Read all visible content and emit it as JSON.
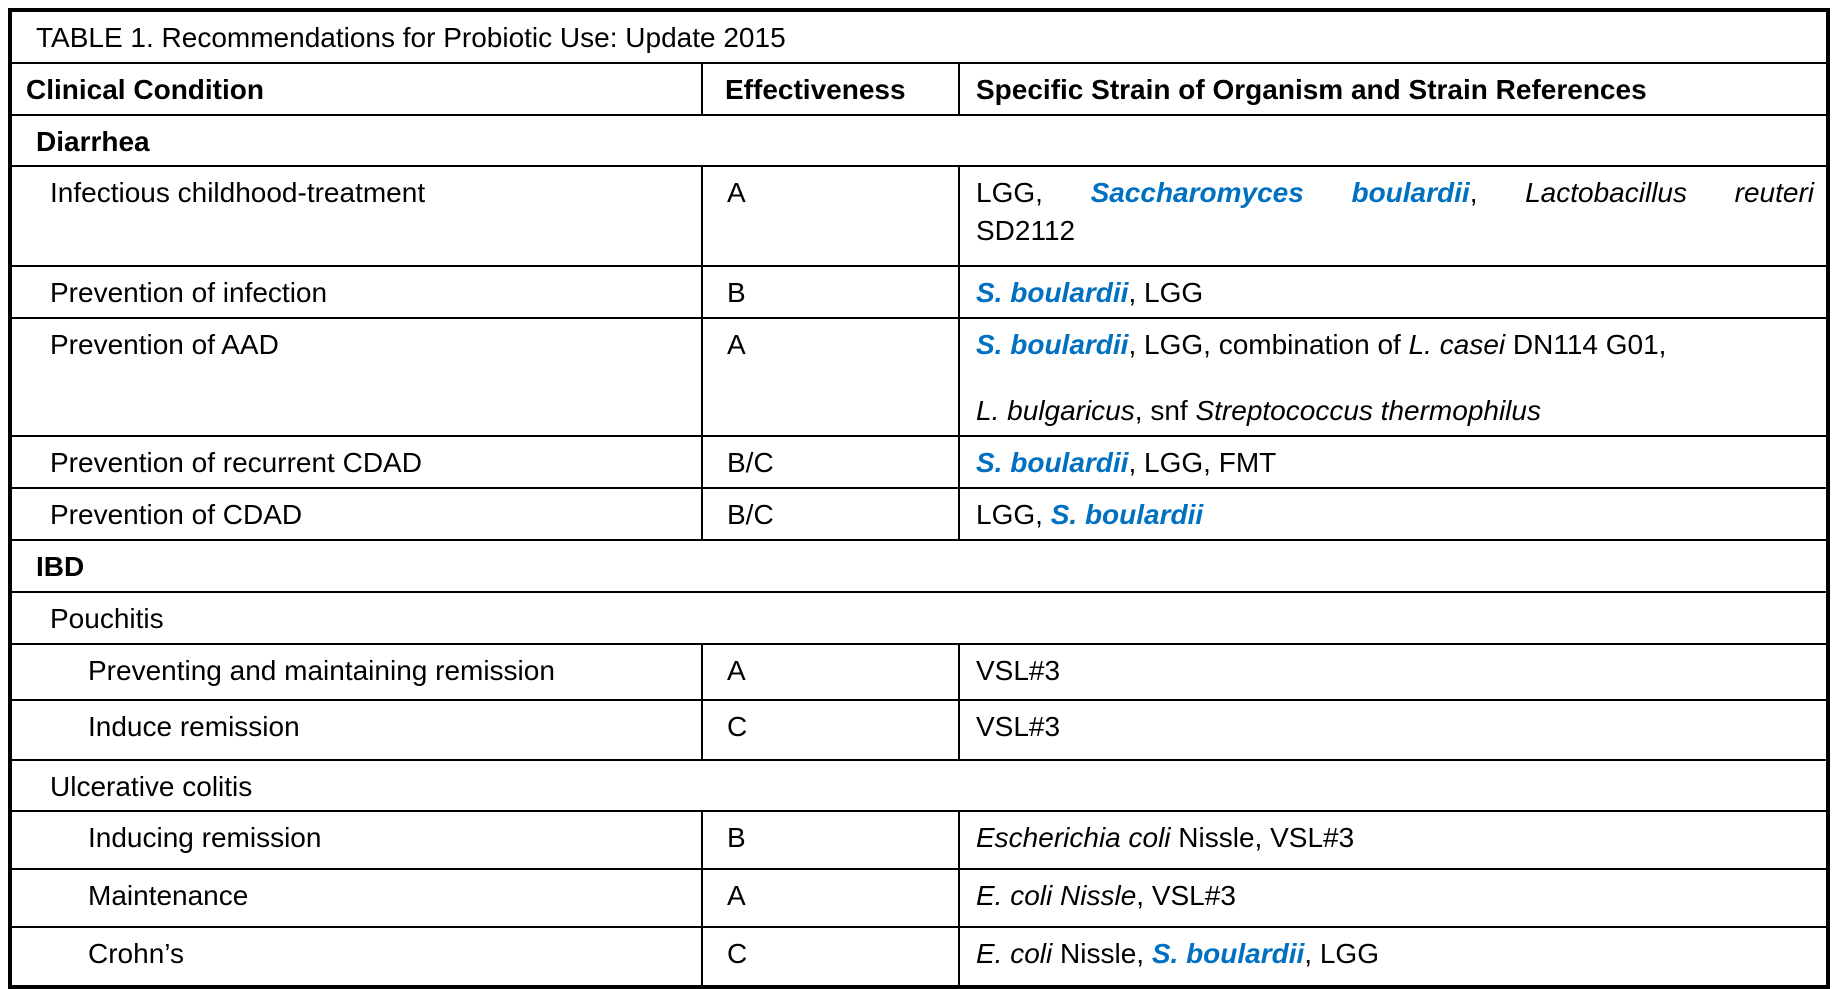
{
  "table": {
    "title": "TABLE 1. Recommendations for Probiotic Use: Update 2015",
    "columns": [
      "Clinical Condition",
      "Effectiveness",
      "Specific Strain of Organism and Strain References"
    ]
  },
  "colors": {
    "strain_blue": "#0070C0",
    "border": "#000000",
    "text": "#000000",
    "background": "#FFFFFF"
  },
  "rows": [
    {
      "type": "section",
      "label": "Diarrhea"
    },
    {
      "type": "data",
      "indent": 1,
      "condition": "Infectious childhood-treatment",
      "effectiveness": "A",
      "strain_lines": [
        {
          "justify": true,
          "segments": [
            {
              "text": "LGG, ",
              "style": "regular"
            },
            {
              "text": "Saccharomyces boulardii",
              "style": "blue-bold-italic"
            },
            {
              "text": ", ",
              "style": "regular"
            },
            {
              "text": "Lactobacillus reuteri",
              "style": "italic"
            }
          ]
        },
        {
          "justify": false,
          "segments": [
            {
              "text": "SD2112",
              "style": "regular"
            }
          ]
        }
      ]
    },
    {
      "type": "data",
      "indent": 1,
      "condition": "Prevention of infection",
      "effectiveness": "B",
      "strain_lines": [
        {
          "justify": false,
          "segments": [
            {
              "text": "S. boulardii",
              "style": "blue-bold-italic"
            },
            {
              "text": ", LGG",
              "style": "regular"
            }
          ]
        }
      ]
    },
    {
      "type": "data",
      "indent": 1,
      "condition": "Prevention of AAD",
      "effectiveness": "A",
      "strain_lines": [
        {
          "justify": false,
          "segments": [
            {
              "text": "S. boulardii",
              "style": "blue-bold-italic"
            },
            {
              "text": ", LGG, combination of ",
              "style": "regular"
            },
            {
              "text": "L. casei",
              "style": "italic"
            },
            {
              "text": " DN114 G01,",
              "style": "regular"
            }
          ]
        },
        {
          "justify": false,
          "segments": [
            {
              "text": "L. bulgaricus",
              "style": "italic"
            },
            {
              "text": ", snf ",
              "style": "regular"
            },
            {
              "text": "Streptococcus thermophilus",
              "style": "italic"
            }
          ]
        }
      ]
    },
    {
      "type": "data",
      "indent": 1,
      "condition": "Prevention of recurrent CDAD",
      "effectiveness": "B/C",
      "strain_lines": [
        {
          "justify": false,
          "segments": [
            {
              "text": "S. boulardii",
              "style": "blue-bold-italic"
            },
            {
              "text": ", LGG, FMT",
              "style": "regular"
            }
          ]
        }
      ]
    },
    {
      "type": "data",
      "indent": 1,
      "condition": "Prevention of CDAD",
      "effectiveness": "B/C",
      "strain_lines": [
        {
          "justify": false,
          "segments": [
            {
              "text": "LGG, ",
              "style": "regular"
            },
            {
              "text": "S. boulardii",
              "style": "blue-bold-italic"
            }
          ]
        }
      ]
    },
    {
      "type": "section",
      "label": "IBD"
    },
    {
      "type": "subsection",
      "label": "Pouchitis"
    },
    {
      "type": "data",
      "indent": 2,
      "condition": "Preventing and maintaining remission",
      "effectiveness": "A",
      "strain_lines": [
        {
          "justify": false,
          "segments": [
            {
              "text": "VSL#3",
              "style": "regular"
            }
          ]
        }
      ]
    },
    {
      "type": "data",
      "indent": 2,
      "condition": "Induce remission",
      "effectiveness": "C",
      "strain_lines": [
        {
          "justify": false,
          "segments": [
            {
              "text": "VSL#3",
              "style": "regular"
            }
          ]
        }
      ]
    },
    {
      "type": "subsection",
      "label": "Ulcerative colitis"
    },
    {
      "type": "data",
      "indent": 2,
      "condition": "Inducing remission",
      "effectiveness": "B",
      "strain_lines": [
        {
          "justify": false,
          "segments": [
            {
              "text": "Escherichia coli",
              "style": "italic"
            },
            {
              "text": " Nissle, VSL#3",
              "style": "regular"
            }
          ]
        }
      ]
    },
    {
      "type": "data",
      "indent": 2,
      "condition": "Maintenance",
      "effectiveness": "A",
      "strain_lines": [
        {
          "justify": false,
          "segments": [
            {
              "text": "E. coli Nissle",
              "style": "italic"
            },
            {
              "text": ", VSL#3",
              "style": "regular"
            }
          ]
        }
      ]
    },
    {
      "type": "data",
      "indent": 2,
      "condition": "Crohn’s",
      "effectiveness": "C",
      "strain_lines": [
        {
          "justify": false,
          "segments": [
            {
              "text": "E. coli",
              "style": "italic"
            },
            {
              "text": " Nissle, ",
              "style": "regular"
            },
            {
              "text": "S. boulardii",
              "style": "blue-bold-italic"
            },
            {
              "text": ", LGG",
              "style": "regular"
            }
          ]
        }
      ]
    }
  ]
}
